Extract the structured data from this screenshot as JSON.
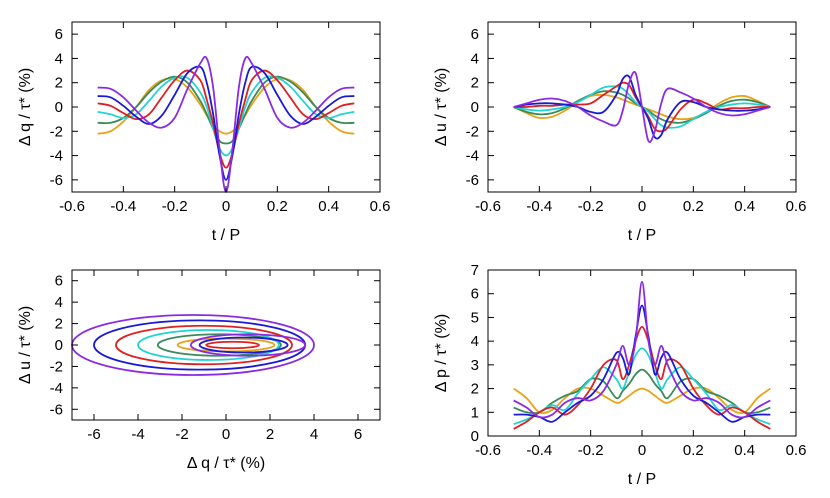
{
  "chart_data": [
    {
      "type": "line",
      "xlabel": "t / P",
      "ylabel": "Δ q / τ* (%)",
      "xlim": [
        -0.6,
        0.6
      ],
      "ylim": [
        -7,
        7
      ],
      "xticks": [
        "-0.6",
        "-0.4",
        "-0.2",
        "0",
        "0.2",
        "0.4",
        "0.6"
      ],
      "yticks": [
        "-6",
        "-4",
        "-2",
        "0",
        "2",
        "4",
        "6"
      ],
      "grid": false,
      "x": [
        -0.5,
        -0.45,
        -0.4,
        -0.35,
        -0.3,
        -0.25,
        -0.2,
        -0.15,
        -0.1,
        -0.075,
        -0.05,
        -0.025,
        0,
        0.025,
        0.05,
        0.075,
        0.1,
        0.15,
        0.2,
        0.25,
        0.3,
        0.35,
        0.4,
        0.45,
        0.5
      ],
      "series": [
        {
          "color": "#e8a317",
          "values": [
            -2.2,
            -2.0,
            -1.2,
            0.0,
            1.4,
            2.2,
            2.3,
            1.6,
            0.2,
            -0.7,
            -1.5,
            -2.0,
            -2.2,
            -2.0,
            -1.5,
            -0.7,
            0.2,
            1.6,
            2.3,
            2.2,
            1.4,
            0.0,
            -1.2,
            -2.0,
            -2.2
          ]
        },
        {
          "color": "#3a8a5c",
          "values": [
            -1.3,
            -1.3,
            -0.9,
            0.0,
            1.2,
            2.1,
            2.5,
            2.0,
            0.5,
            -0.6,
            -1.8,
            -2.8,
            -3.0,
            -2.8,
            -1.8,
            -0.6,
            0.5,
            2.0,
            2.5,
            2.1,
            1.2,
            0.0,
            -0.9,
            -1.3,
            -1.3
          ]
        },
        {
          "color": "#22d3d3",
          "values": [
            -0.4,
            -0.6,
            -0.9,
            -0.6,
            0.5,
            1.7,
            2.4,
            2.4,
            1.2,
            0.0,
            -1.8,
            -3.4,
            -4.0,
            -3.4,
            -1.8,
            0.0,
            1.2,
            2.4,
            2.4,
            1.7,
            0.5,
            -0.6,
            -0.9,
            -0.6,
            -0.4
          ]
        },
        {
          "color": "#e02020",
          "values": [
            0.3,
            0.1,
            -0.5,
            -1.0,
            -0.6,
            0.8,
            2.2,
            3.0,
            2.2,
            0.6,
            -1.4,
            -3.8,
            -5.0,
            -3.8,
            -1.4,
            0.6,
            2.2,
            3.0,
            2.2,
            0.8,
            -0.6,
            -1.0,
            -0.5,
            0.1,
            0.3
          ]
        },
        {
          "color": "#1a1ad6",
          "values": [
            0.9,
            0.8,
            0.1,
            -0.8,
            -1.4,
            -0.7,
            1.0,
            2.8,
            3.3,
            2.0,
            -0.6,
            -4.0,
            -6.0,
            -4.0,
            -0.6,
            2.0,
            3.3,
            2.8,
            1.0,
            -0.7,
            -1.4,
            -0.8,
            0.1,
            0.8,
            0.9
          ]
        },
        {
          "color": "#8a2be2",
          "values": [
            1.6,
            1.5,
            0.8,
            -0.3,
            -1.3,
            -1.7,
            -0.9,
            1.5,
            3.6,
            4.0,
            1.6,
            -3.5,
            -7.0,
            -3.5,
            1.6,
            4.0,
            3.6,
            1.5,
            -0.9,
            -1.7,
            -1.3,
            -0.3,
            0.8,
            1.5,
            1.6
          ]
        }
      ]
    },
    {
      "type": "line",
      "xlabel": "t / P",
      "ylabel": "Δ u / τ* (%)",
      "xlim": [
        -0.6,
        0.6
      ],
      "ylim": [
        -7,
        7
      ],
      "xticks": [
        "-0.6",
        "-0.4",
        "-0.2",
        "0",
        "0.2",
        "0.4",
        "0.6"
      ],
      "yticks": [
        "-6",
        "-4",
        "-2",
        "0",
        "2",
        "4",
        "6"
      ],
      "grid": false,
      "x": [
        -0.5,
        -0.45,
        -0.4,
        -0.35,
        -0.3,
        -0.25,
        -0.2,
        -0.15,
        -0.1,
        -0.075,
        -0.05,
        -0.025,
        0,
        0.025,
        0.05,
        0.075,
        0.1,
        0.15,
        0.2,
        0.25,
        0.3,
        0.35,
        0.4,
        0.45,
        0.5
      ],
      "series": [
        {
          "color": "#e8a317",
          "values": [
            0.0,
            -0.5,
            -0.9,
            -0.8,
            -0.3,
            0.4,
            0.9,
            1.0,
            0.8,
            0.6,
            0.4,
            0.2,
            0.0,
            -0.2,
            -0.4,
            -0.6,
            -0.8,
            -1.0,
            -0.9,
            -0.4,
            0.3,
            0.8,
            0.9,
            0.5,
            0.0
          ]
        },
        {
          "color": "#3a8a5c",
          "values": [
            0.0,
            -0.4,
            -0.6,
            -0.5,
            -0.1,
            0.5,
            1.0,
            1.3,
            1.2,
            1.0,
            0.7,
            0.3,
            0.0,
            -0.3,
            -0.7,
            -1.0,
            -1.2,
            -1.3,
            -1.0,
            -0.5,
            0.1,
            0.5,
            0.6,
            0.4,
            0.0
          ]
        },
        {
          "color": "#22d3d3",
          "values": [
            0.0,
            -0.2,
            -0.3,
            -0.2,
            0.0,
            0.4,
            1.0,
            1.6,
            1.7,
            1.5,
            1.0,
            0.4,
            0.0,
            -0.4,
            -1.0,
            -1.5,
            -1.7,
            -1.6,
            -1.0,
            -0.4,
            0.0,
            0.2,
            0.3,
            0.2,
            0.0
          ]
        },
        {
          "color": "#e02020",
          "values": [
            0.0,
            0.0,
            0.1,
            0.1,
            0.2,
            0.2,
            0.3,
            1.0,
            1.7,
            2.0,
            1.8,
            0.8,
            0.0,
            -0.8,
            -1.8,
            -2.0,
            -1.7,
            -0.2,
            0.6,
            0.3,
            -0.2,
            -0.1,
            -0.1,
            0.0,
            0.0
          ]
        },
        {
          "color": "#1a1ad6",
          "values": [
            0.0,
            0.2,
            0.3,
            0.3,
            0.2,
            0.0,
            -0.4,
            -0.4,
            1.0,
            2.3,
            2.5,
            1.0,
            0.0,
            -1.0,
            -2.5,
            -2.3,
            -1.0,
            0.4,
            0.4,
            0.0,
            -0.2,
            -0.3,
            -0.3,
            -0.2,
            0.0
          ]
        },
        {
          "color": "#8a2be2",
          "values": [
            0.0,
            0.3,
            0.6,
            0.7,
            0.5,
            0.0,
            -0.7,
            -1.2,
            -1.5,
            -0.3,
            2.0,
            2.8,
            0.0,
            -2.8,
            -2.0,
            0.3,
            1.5,
            1.2,
            0.7,
            0.0,
            -0.5,
            -0.7,
            -0.6,
            -0.3,
            0.0
          ]
        }
      ]
    },
    {
      "type": "line",
      "xlabel": "Δ q / τ* (%)",
      "ylabel": "Δ u / τ* (%)",
      "xlim": [
        -7,
        7
      ],
      "ylim": [
        -7,
        7
      ],
      "xticks": [
        "-6",
        "-4",
        "-2",
        "0",
        "2",
        "4",
        "6"
      ],
      "yticks": [
        "-6",
        "-4",
        "-2",
        "0",
        "2",
        "4",
        "6"
      ],
      "grid": false,
      "loops": [
        {
          "color": "#e8a317",
          "cx": 0.0,
          "cy": 0.0,
          "rx": 2.2,
          "ry": 0.6
        },
        {
          "color": "#3a8a5c",
          "cx": -0.3,
          "cy": 0.0,
          "rx": 2.8,
          "ry": 1.0
        },
        {
          "color": "#22d3d3",
          "cx": -0.8,
          "cy": 0.0,
          "rx": 3.2,
          "ry": 1.4
        },
        {
          "color": "#e02020",
          "cx": -1.0,
          "cy": 0.0,
          "rx": 4.0,
          "ry": 1.8
        },
        {
          "color": "#1a1ad6",
          "cx": -1.2,
          "cy": 0.0,
          "rx": 4.8,
          "ry": 2.3
        },
        {
          "color": "#8a2be2",
          "cx": -1.5,
          "cy": 0.0,
          "rx": 5.5,
          "ry": 2.8
        },
        {
          "color": "#e02020",
          "cx": 0.3,
          "cy": 0.0,
          "rx": 1.2,
          "ry": 0.3
        },
        {
          "color": "#1a1ad6",
          "cx": 0.8,
          "cy": 0.0,
          "rx": 2.0,
          "ry": 0.7
        },
        {
          "color": "#8a2be2",
          "cx": 1.0,
          "cy": 0.0,
          "rx": 2.6,
          "ry": 1.0
        }
      ]
    },
    {
      "type": "line",
      "xlabel": "t / P",
      "ylabel": "Δ p / τ* (%)",
      "xlim": [
        -0.6,
        0.6
      ],
      "ylim": [
        0,
        7
      ],
      "xticks": [
        "-0.6",
        "-0.4",
        "-0.2",
        "0",
        "0.2",
        "0.4",
        "0.6"
      ],
      "yticks": [
        "0",
        "1",
        "2",
        "3",
        "4",
        "5",
        "6",
        "7"
      ],
      "grid": false,
      "x": [
        -0.5,
        -0.45,
        -0.4,
        -0.35,
        -0.3,
        -0.25,
        -0.2,
        -0.15,
        -0.1,
        -0.075,
        -0.05,
        -0.025,
        0,
        0.025,
        0.05,
        0.075,
        0.1,
        0.15,
        0.2,
        0.25,
        0.3,
        0.35,
        0.4,
        0.45,
        0.5
      ],
      "series": [
        {
          "color": "#e8a317",
          "values": [
            2.0,
            1.6,
            1.0,
            1.1,
            1.6,
            2.0,
            2.0,
            1.7,
            1.4,
            1.5,
            1.7,
            1.9,
            2.0,
            1.9,
            1.7,
            1.5,
            1.4,
            1.7,
            2.0,
            2.0,
            1.6,
            1.1,
            1.0,
            1.6,
            2.0
          ]
        },
        {
          "color": "#3a8a5c",
          "values": [
            1.2,
            1.0,
            1.0,
            1.4,
            1.7,
            1.9,
            2.4,
            2.3,
            1.6,
            1.9,
            2.2,
            2.6,
            2.8,
            2.6,
            2.2,
            1.9,
            1.6,
            2.3,
            2.4,
            1.9,
            1.7,
            1.4,
            1.0,
            1.0,
            1.2
          ]
        },
        {
          "color": "#22d3d3",
          "values": [
            0.5,
            0.7,
            1.0,
            1.3,
            1.1,
            1.8,
            2.4,
            2.9,
            2.4,
            2.0,
            2.7,
            3.4,
            3.7,
            3.4,
            2.7,
            2.0,
            2.4,
            2.9,
            2.4,
            1.8,
            1.1,
            1.3,
            1.0,
            0.7,
            0.5
          ]
        },
        {
          "color": "#e02020",
          "values": [
            0.3,
            0.6,
            1.0,
            1.2,
            0.9,
            1.3,
            2.0,
            3.0,
            3.2,
            2.4,
            3.0,
            4.0,
            4.6,
            4.0,
            3.0,
            2.4,
            3.2,
            3.0,
            2.0,
            1.3,
            0.9,
            1.2,
            1.0,
            0.6,
            0.3
          ]
        },
        {
          "color": "#1a1ad6",
          "values": [
            0.9,
            0.9,
            0.8,
            0.6,
            1.0,
            1.4,
            1.7,
            2.4,
            3.5,
            3.3,
            2.6,
            4.2,
            5.5,
            4.2,
            2.6,
            3.3,
            3.5,
            2.4,
            1.7,
            1.4,
            1.0,
            0.6,
            0.8,
            0.9,
            0.9
          ]
        },
        {
          "color": "#8a2be2",
          "values": [
            1.5,
            1.2,
            0.8,
            0.9,
            1.4,
            1.6,
            1.5,
            1.9,
            3.0,
            3.8,
            3.0,
            4.0,
            6.5,
            4.0,
            3.0,
            3.8,
            3.0,
            1.9,
            1.5,
            1.6,
            1.4,
            0.9,
            0.8,
            1.2,
            1.5
          ]
        }
      ]
    }
  ]
}
